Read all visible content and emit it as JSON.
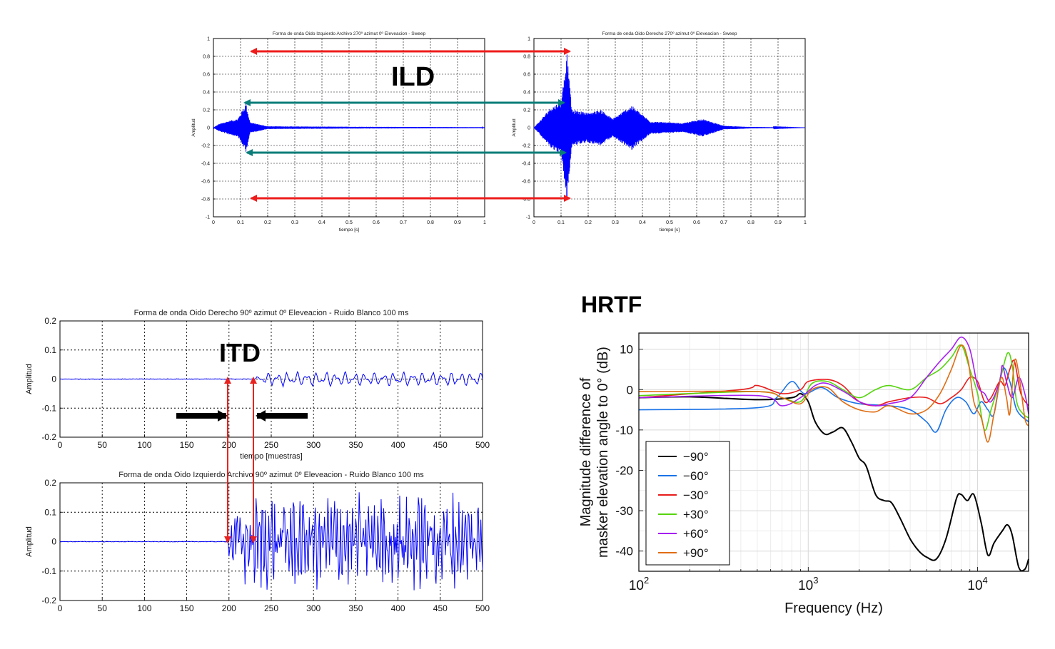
{
  "labels": {
    "ild": "ILD",
    "itd": "ITD",
    "hrtf": "HRTF"
  },
  "colors": {
    "waveform": "#0000ff",
    "ild_outer_arrow": "#ee1c1c",
    "ild_inner_arrow": "#0a7d78",
    "itd_marker": "#e8231f",
    "itd_arrow": "#000000"
  },
  "chart_data": [
    {
      "id": "sweep-left",
      "type": "line",
      "title": "Forma de onda Oido Izquierdo Archivo 270º azimut 0º Eleveacion - Sweep",
      "xlabel": "tiempo [s]",
      "ylabel": "Amplitud",
      "xlim": [
        0,
        1
      ],
      "ylim": [
        -1,
        1
      ],
      "xticks": [
        "0",
        "0.1",
        "0.2",
        "0.3",
        "0.4",
        "0.5",
        "0.6",
        "0.7",
        "0.8",
        "0.9",
        "1"
      ],
      "yticks": [
        "1",
        "0.8",
        "0.6",
        "0.4",
        "0.2",
        "0",
        "-0.2",
        "-0.4",
        "-0.6",
        "-0.8",
        "-1"
      ],
      "grid": true,
      "envelope": [
        [
          0,
          0.0
        ],
        [
          0.02,
          0.04
        ],
        [
          0.05,
          0.07
        ],
        [
          0.09,
          0.1
        ],
        [
          0.12,
          0.27
        ],
        [
          0.135,
          0.06
        ],
        [
          0.2,
          0.015
        ],
        [
          0.5,
          0.01
        ],
        [
          1,
          0.005
        ]
      ],
      "peak": {
        "x": 0.12,
        "max": 0.27,
        "min": -0.27
      }
    },
    {
      "id": "sweep-right",
      "type": "line",
      "title": "Forma de onda Oido Derecho 270º azimut 0º Eleveacion - Sweep",
      "xlabel": "tiempo [s]",
      "ylabel": "Amplitud",
      "xlim": [
        0,
        1
      ],
      "ylim": [
        -1,
        1
      ],
      "xticks": [
        "0",
        "0.1",
        "0.2",
        "0.3",
        "0.4",
        "0.5",
        "0.6",
        "0.7",
        "0.8",
        "0.9",
        "1"
      ],
      "yticks": [
        "1",
        "0.8",
        "0.6",
        "0.4",
        "0.2",
        "0",
        "-0.2",
        "-0.4",
        "-0.6",
        "-0.8",
        "-1"
      ],
      "grid": true,
      "envelope": [
        [
          0,
          0.0
        ],
        [
          0.02,
          0.07
        ],
        [
          0.06,
          0.22
        ],
        [
          0.1,
          0.3
        ],
        [
          0.122,
          0.82
        ],
        [
          0.14,
          0.2
        ],
        [
          0.2,
          0.17
        ],
        [
          0.25,
          0.2
        ],
        [
          0.29,
          0.1
        ],
        [
          0.36,
          0.25
        ],
        [
          0.43,
          0.07
        ],
        [
          0.55,
          0.05
        ],
        [
          0.62,
          0.1
        ],
        [
          0.7,
          0.02
        ],
        [
          0.8,
          0.008
        ],
        [
          1,
          0.0
        ]
      ],
      "peak": {
        "x": 0.122,
        "max": 0.82,
        "min": -0.78
      }
    },
    {
      "id": "noise-right",
      "type": "line",
      "title": "Forma de onda Oido Derecho 90º azimut 0º Eleveacion - Ruido Blanco 100 ms",
      "xlabel": "tiempo [muestras]",
      "ylabel": "Amplitud",
      "xlim": [
        0,
        500
      ],
      "ylim": [
        -0.2,
        0.2
      ],
      "xticks": [
        "0",
        "50",
        "100",
        "150",
        "200",
        "250",
        "300",
        "350",
        "400",
        "450",
        "500"
      ],
      "yticks": [
        "0.2",
        "0.1",
        "0",
        "-0.1",
        "-0.2"
      ],
      "grid": true,
      "onset": 232,
      "amplitude": 0.028
    },
    {
      "id": "noise-left",
      "type": "line",
      "title": "Forma de onda Oido Izquierdo Archivo 90º azimut 0º Eleveacion - Ruido Blanco 100 ms",
      "xlabel": "",
      "ylabel": "Amplitud",
      "xlim": [
        0,
        500
      ],
      "ylim": [
        -0.2,
        0.2
      ],
      "xticks": [
        "0",
        "50",
        "100",
        "150",
        "200",
        "250",
        "300",
        "350",
        "400",
        "450",
        "500"
      ],
      "yticks": [
        "0.2",
        "0.1",
        "0",
        "-0.1",
        "-0.2"
      ],
      "grid": true,
      "onset": 198,
      "amplitude": 0.16
    },
    {
      "id": "hrtf",
      "type": "line",
      "title": "",
      "xlabel": "Frequency (Hz)",
      "ylabel_lines": [
        "Magnitude difference of",
        "masker elevation angle to 0° (dB)"
      ],
      "xscale": "log",
      "xlim": [
        100,
        20000
      ],
      "ylim": [
        -45,
        14
      ],
      "xticks": [
        {
          "base": "10",
          "exp": "2"
        },
        {
          "base": "10",
          "exp": "3"
        },
        {
          "base": "10",
          "exp": "4"
        }
      ],
      "yticks": [
        "10",
        "0",
        "-10",
        "-20",
        "-30",
        "-40"
      ],
      "grid": true,
      "legend_position": "lower-left",
      "series": [
        {
          "name": "−90°",
          "color": "#000000",
          "points": [
            [
              100,
              -2
            ],
            [
              200,
              -1.8
            ],
            [
              500,
              -2.5
            ],
            [
              800,
              -2
            ],
            [
              900,
              -1
            ],
            [
              1000,
              -3
            ],
            [
              1100,
              -8
            ],
            [
              1250,
              -11
            ],
            [
              1400,
              -10.5
            ],
            [
              1600,
              -9.5
            ],
            [
              1800,
              -13
            ],
            [
              2000,
              -17
            ],
            [
              2200,
              -19
            ],
            [
              2500,
              -26
            ],
            [
              2800,
              -27.5
            ],
            [
              3100,
              -28
            ],
            [
              3500,
              -32
            ],
            [
              4000,
              -37
            ],
            [
              4500,
              -40
            ],
            [
              5000,
              -41.5
            ],
            [
              5700,
              -42
            ],
            [
              6500,
              -37
            ],
            [
              7500,
              -27
            ],
            [
              8000,
              -26
            ],
            [
              8700,
              -27.5
            ],
            [
              9500,
              -26
            ],
            [
              10500,
              -33
            ],
            [
              11500,
              -41
            ],
            [
              12500,
              -38
            ],
            [
              14000,
              -35
            ],
            [
              15000,
              -33.5
            ],
            [
              16000,
              -36
            ],
            [
              17500,
              -44
            ],
            [
              19000,
              -44.5
            ],
            [
              20000,
              -42
            ]
          ]
        },
        {
          "name": "−60°",
          "color": "#1a73e8",
          "points": [
            [
              100,
              -5
            ],
            [
              500,
              -4.5
            ],
            [
              650,
              -2
            ],
            [
              800,
              2
            ],
            [
              950,
              -1
            ],
            [
              1200,
              0.5
            ],
            [
              1500,
              -2
            ],
            [
              2000,
              -3.5
            ],
            [
              3000,
              -4
            ],
            [
              4000,
              -5
            ],
            [
              5000,
              -8
            ],
            [
              5700,
              -10.5
            ],
            [
              6500,
              -5
            ],
            [
              7500,
              -2
            ],
            [
              8500,
              -3
            ],
            [
              9500,
              -6
            ],
            [
              10500,
              -3
            ],
            [
              11500,
              -5
            ],
            [
              12500,
              -6
            ],
            [
              14000,
              5
            ],
            [
              15500,
              2
            ],
            [
              17000,
              -5
            ],
            [
              20000,
              -8
            ]
          ]
        },
        {
          "name": "−30°",
          "color": "#e81c1c",
          "points": [
            [
              100,
              -2
            ],
            [
              400,
              0
            ],
            [
              500,
              1
            ],
            [
              700,
              -1
            ],
            [
              900,
              0
            ],
            [
              1000,
              2
            ],
            [
              1300,
              2.5
            ],
            [
              1600,
              1
            ],
            [
              2000,
              -3
            ],
            [
              2500,
              -4
            ],
            [
              3000,
              -3
            ],
            [
              4000,
              -2
            ],
            [
              5000,
              -2
            ],
            [
              6000,
              -3.5
            ],
            [
              7000,
              -2
            ],
            [
              8000,
              0
            ],
            [
              9000,
              3
            ],
            [
              10000,
              2
            ],
            [
              11000,
              -3
            ],
            [
              12000,
              -2
            ],
            [
              13500,
              2
            ],
            [
              14500,
              1
            ],
            [
              15500,
              5
            ],
            [
              16500,
              7
            ],
            [
              18000,
              -1
            ],
            [
              20000,
              -4
            ]
          ]
        },
        {
          "name": "+30°",
          "color": "#57d40f",
          "points": [
            [
              100,
              -1.5
            ],
            [
              500,
              -0.5
            ],
            [
              700,
              -2
            ],
            [
              900,
              -3
            ],
            [
              1050,
              1.5
            ],
            [
              1300,
              2
            ],
            [
              1600,
              0
            ],
            [
              2000,
              -2
            ],
            [
              2500,
              0
            ],
            [
              3000,
              1
            ],
            [
              4000,
              0
            ],
            [
              5000,
              3
            ],
            [
              6000,
              5
            ],
            [
              7000,
              8
            ],
            [
              8000,
              11
            ],
            [
              9000,
              5
            ],
            [
              10000,
              -1
            ],
            [
              11000,
              -10
            ],
            [
              12000,
              -5
            ],
            [
              13500,
              2
            ],
            [
              15000,
              9
            ],
            [
              16000,
              6
            ],
            [
              17000,
              -3
            ],
            [
              18500,
              -6
            ],
            [
              20000,
              -7
            ]
          ]
        },
        {
          "name": "+60°",
          "color": "#a51ff0",
          "points": [
            [
              100,
              -2
            ],
            [
              500,
              -1.5
            ],
            [
              700,
              -4
            ],
            [
              900,
              -2
            ],
            [
              1100,
              1
            ],
            [
              1300,
              1.5
            ],
            [
              1700,
              -1
            ],
            [
              2000,
              -3
            ],
            [
              2500,
              -4
            ],
            [
              3000,
              -3.5
            ],
            [
              4000,
              -2
            ],
            [
              5000,
              3
            ],
            [
              6000,
              7
            ],
            [
              7000,
              10
            ],
            [
              8000,
              13
            ],
            [
              9000,
              10
            ],
            [
              10000,
              1
            ],
            [
              11000,
              -1
            ],
            [
              12000,
              -3
            ],
            [
              13500,
              2
            ],
            [
              14000,
              6
            ],
            [
              14800,
              2
            ],
            [
              16000,
              -2
            ],
            [
              17500,
              3
            ],
            [
              19000,
              -1
            ],
            [
              20000,
              -6
            ]
          ]
        },
        {
          "name": "+90°",
          "color": "#e06d13",
          "points": [
            [
              100,
              -0.5
            ],
            [
              500,
              -0.5
            ],
            [
              700,
              -2
            ],
            [
              900,
              -3.5
            ],
            [
              1050,
              0
            ],
            [
              1300,
              0.5
            ],
            [
              1600,
              -3
            ],
            [
              2000,
              -5
            ],
            [
              2500,
              -5.5
            ],
            [
              3000,
              -4
            ],
            [
              4000,
              -6
            ],
            [
              5000,
              -5
            ],
            [
              6000,
              -1
            ],
            [
              7000,
              5
            ],
            [
              8000,
              11
            ],
            [
              8800,
              7
            ],
            [
              9500,
              -3
            ],
            [
              10500,
              -7
            ],
            [
              11500,
              -13
            ],
            [
              12500,
              -6
            ],
            [
              13800,
              3
            ],
            [
              14800,
              -2
            ],
            [
              15500,
              -6
            ],
            [
              16500,
              7
            ],
            [
              17500,
              4
            ],
            [
              19000,
              -7
            ],
            [
              20000,
              -9
            ]
          ]
        }
      ]
    }
  ]
}
